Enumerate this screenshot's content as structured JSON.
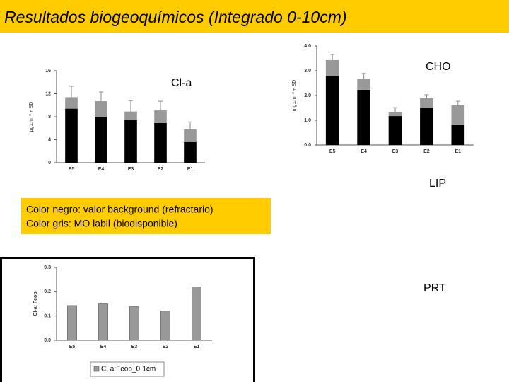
{
  "title": "Resultados biogeoquímicos (Integrado 0-10cm)",
  "labels": {
    "cla": "Cl-a",
    "cho": "CHO",
    "lip": "LIP",
    "prt": "PRT"
  },
  "notes": [
    "Color negro: valor background (refractario)",
    "Color gris: MO labil (biodisponible)"
  ],
  "chart_data": [
    {
      "type": "stacked_bar",
      "y_label": "µg.cm⁻² + SD",
      "categories": [
        "E5",
        "E4",
        "E3",
        "E2",
        "E1"
      ],
      "series": [
        {
          "color": "#000000",
          "values": [
            9.4,
            8.0,
            7.4,
            6.9,
            3.6
          ]
        },
        {
          "color": "#999999",
          "values": [
            2.0,
            2.7,
            1.5,
            2.2,
            2.2
          ],
          "errors": [
            1.9,
            1.6,
            1.9,
            1.6,
            1.3
          ]
        }
      ],
      "ylim": [
        0,
        16
      ],
      "yticks": [
        0,
        4,
        8,
        12,
        16
      ]
    },
    {
      "type": "stacked_bar",
      "y_label": "mg.cm⁻² + SD",
      "categories": [
        "E5",
        "E4",
        "E3",
        "E2",
        "E1"
      ],
      "series": [
        {
          "color": "#000000",
          "values": [
            2.8,
            2.23,
            1.17,
            1.51,
            0.83
          ]
        },
        {
          "color": "#999999",
          "values": [
            0.63,
            0.43,
            0.17,
            0.38,
            0.77
          ],
          "errors": [
            0.23,
            0.23,
            0.17,
            0.14,
            0.17
          ]
        }
      ],
      "ylim": [
        0,
        4
      ],
      "yticks": [
        {
          "value": 0,
          "label": "0.0"
        },
        {
          "value": 1,
          "label": "1.0"
        },
        {
          "value": 2,
          "label": "2.0"
        },
        {
          "value": 3,
          "label": "3.0"
        },
        {
          "value": 4,
          "label": "4.0"
        }
      ]
    },
    {
      "type": "bar",
      "y_label": "Cl-a: Feop",
      "categories": [
        "E5",
        "E4",
        "E3",
        "E2",
        "E1"
      ],
      "series": [
        {
          "name": "Cl-a:Feop_0-1cm",
          "color": "#999999",
          "values": [
            0.143,
            0.15,
            0.14,
            0.12,
            0.22
          ]
        }
      ],
      "ylim": [
        0,
        0.3
      ],
      "yticks": [
        {
          "value": 0,
          "label": "0.0"
        },
        {
          "value": 0.1,
          "label": "0.1"
        },
        {
          "value": 0.2,
          "label": "0.2"
        },
        {
          "value": 0.3,
          "label": "0.3"
        }
      ]
    }
  ]
}
